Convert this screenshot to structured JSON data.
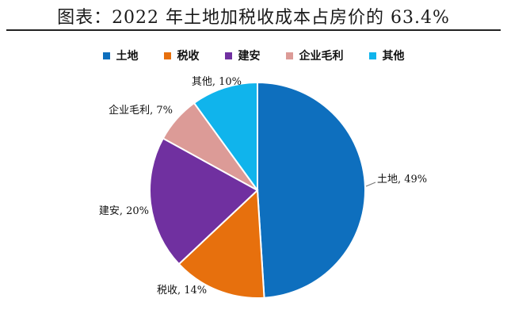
{
  "title": "图表：2022 年土地加税收成本占房价的 63.4%",
  "chart_data": {
    "type": "pie",
    "labels": [
      "土地",
      "税收",
      "建安",
      "企业毛利",
      "其他"
    ],
    "values": [
      49,
      14,
      20,
      7,
      10
    ],
    "colors": [
      "#0e6fbe",
      "#e7700d",
      "#7030a0",
      "#dc9b97",
      "#10b4ec"
    ],
    "data_labels": [
      "土地, 49%",
      "税收, 14%",
      "建安, 20%",
      "企业毛利, 7%",
      "其他, 10%"
    ],
    "legend_position": "top",
    "start_angle_deg": 0,
    "direction": "clockwise"
  }
}
